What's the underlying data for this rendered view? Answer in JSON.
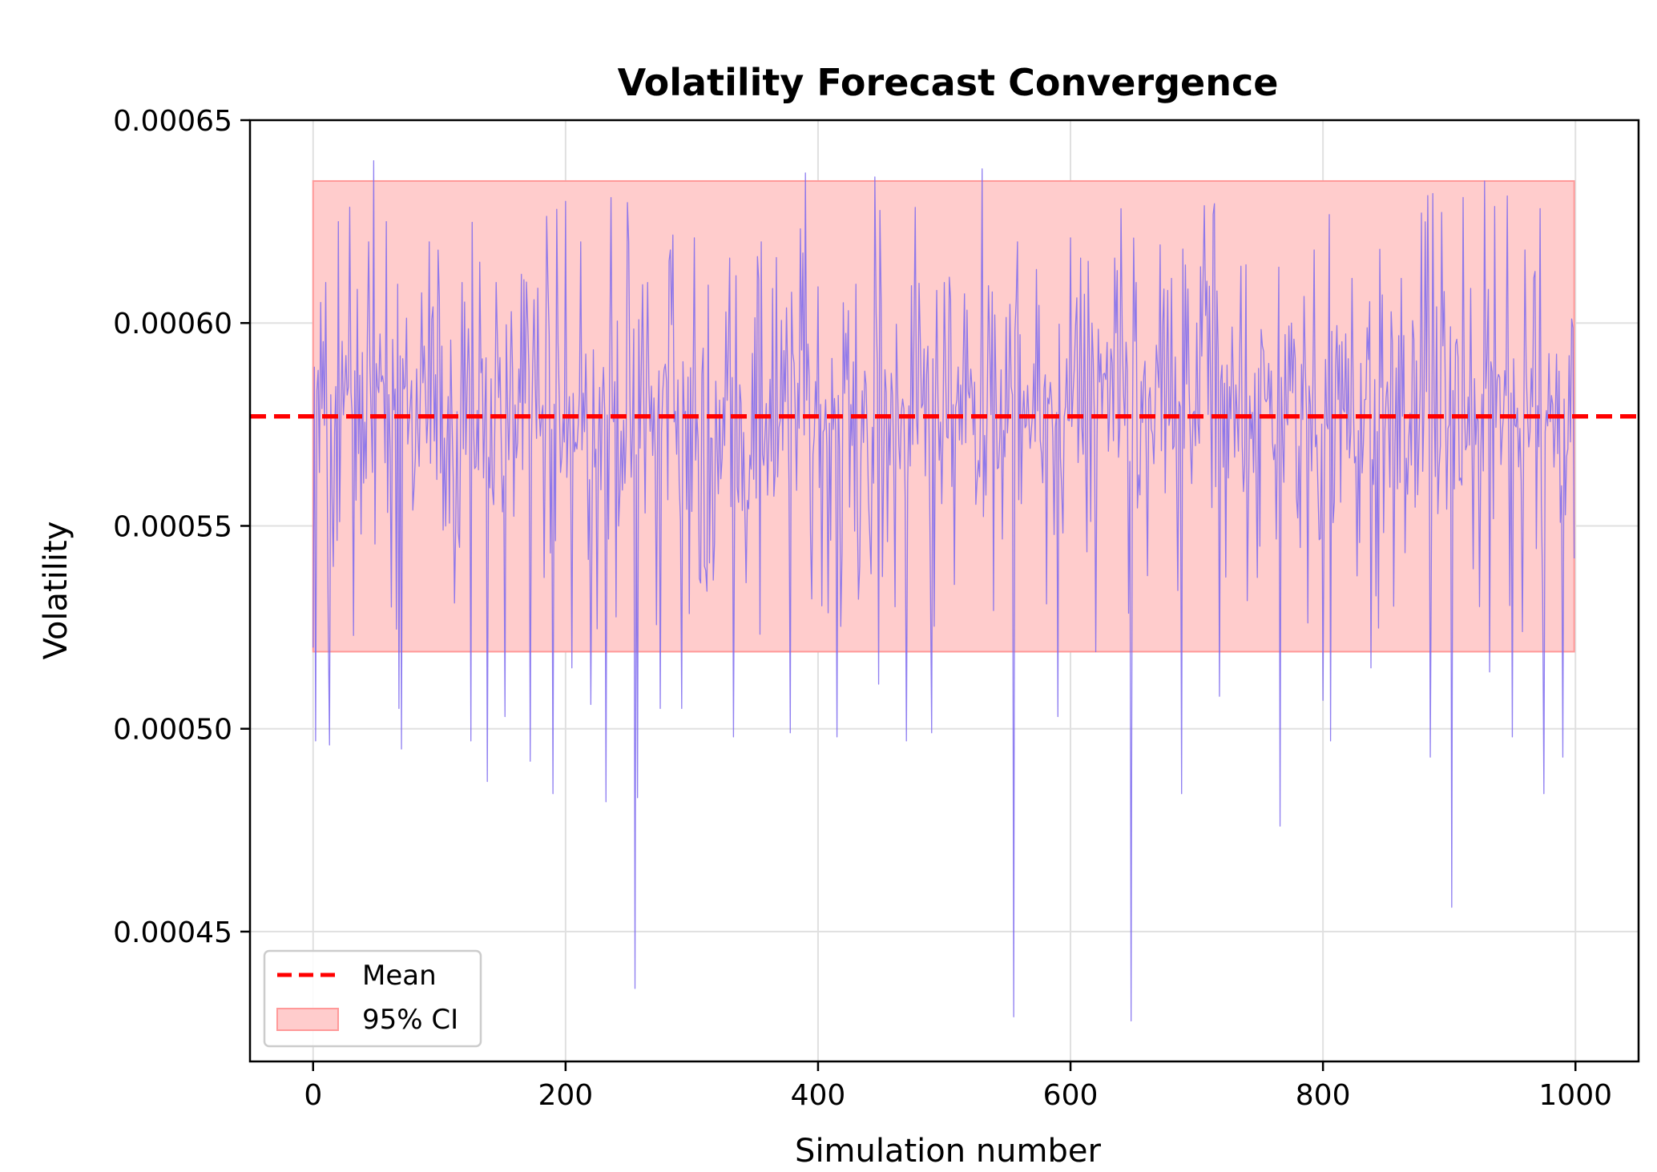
{
  "chart_data": {
    "type": "line",
    "title": "Volatility Forecast Convergence",
    "xlabel": "Simulation number",
    "ylabel": "Volatility",
    "xlim": [
      -50,
      1050
    ],
    "ylim": [
      0.000418,
      0.00065
    ],
    "x_ticks": [
      0,
      200,
      400,
      600,
      800,
      1000
    ],
    "x_tick_labels": [
      "0",
      "200",
      "400",
      "600",
      "800",
      "1000"
    ],
    "y_ticks": [
      0.00045,
      0.0005,
      0.00055,
      0.0006,
      0.00065
    ],
    "y_tick_labels": [
      "0.00045",
      "0.00050",
      "0.00055",
      "0.00060",
      "0.00065"
    ],
    "grid": true,
    "legend_position": "lower left",
    "mean": 0.000577,
    "ci_95": [
      0.000519,
      0.000635
    ],
    "ci_x_range": [
      0,
      999
    ],
    "n_simulations": 1000,
    "series_color": "#7b68ee",
    "mean_color": "#ff0000",
    "ci_color": "#ffcccc",
    "ci_edge_color": "#ff9999",
    "legend": [
      {
        "label": "Mean",
        "style": "dashed-line",
        "color": "#ff0000"
      },
      {
        "label": "95% CI",
        "style": "patch",
        "color": "#ffcccc"
      }
    ],
    "series": [
      {
        "values_note_free": true,
        "x": [
          0,
          2,
          10,
          13,
          16,
          20,
          32,
          38,
          44,
          48,
          50,
          58,
          62,
          68,
          70,
          92,
          112,
          118,
          125,
          132,
          138,
          145,
          152,
          165,
          172,
          186,
          190,
          200,
          205,
          212,
          220,
          232,
          250,
          255,
          257,
          265,
          275,
          283,
          292,
          302,
          330,
          333,
          355,
          378,
          390,
          395,
          415,
          420,
          445,
          448,
          450,
          470,
          490,
          500,
          530,
          555,
          558,
          590,
          600,
          608,
          620,
          635,
          648,
          652,
          680,
          688,
          700,
          718,
          735,
          750,
          766,
          775,
          793,
          800,
          806,
          823,
          838,
          862,
          885,
          890,
          902,
          906,
          928,
          932,
          950,
          960,
          975,
          990,
          997,
          999
        ],
        "y": [
          0.00052,
          0.000497,
          0.00061,
          0.000496,
          0.00054,
          0.000625,
          0.000523,
          0.000548,
          0.00062,
          0.00064,
          0.00059,
          0.000625,
          0.00053,
          0.000505,
          0.000495,
          0.00062,
          0.000531,
          0.00061,
          0.000497,
          0.000615,
          0.000487,
          0.00061,
          0.000503,
          0.000612,
          0.000492,
          0.00061,
          0.000484,
          0.00063,
          0.000515,
          0.00062,
          0.000506,
          0.000482,
          0.00062,
          0.000436,
          0.000483,
          0.00061,
          0.000505,
          0.000618,
          0.000505,
          0.000621,
          0.000616,
          0.000498,
          0.00062,
          0.000499,
          0.000637,
          0.000532,
          0.000498,
          0.000605,
          0.000636,
          0.000511,
          0.000605,
          0.000497,
          0.000499,
          0.00061,
          0.000638,
          0.000429,
          0.00062,
          0.000503,
          0.000621,
          0.000616,
          0.000519,
          0.000616,
          0.000428,
          0.00061,
          0.000611,
          0.000484,
          0.0006,
          0.000508,
          0.000614,
          0.000545,
          0.000476,
          0.0006,
          0.000618,
          0.000507,
          0.000497,
          0.000611,
          0.000515,
          0.000611,
          0.000493,
          0.000604,
          0.000456,
          0.000596,
          0.000635,
          0.000514,
          0.000498,
          0.000618,
          0.000484,
          0.000493,
          0.000601,
          0.000542
        ]
      }
    ]
  }
}
